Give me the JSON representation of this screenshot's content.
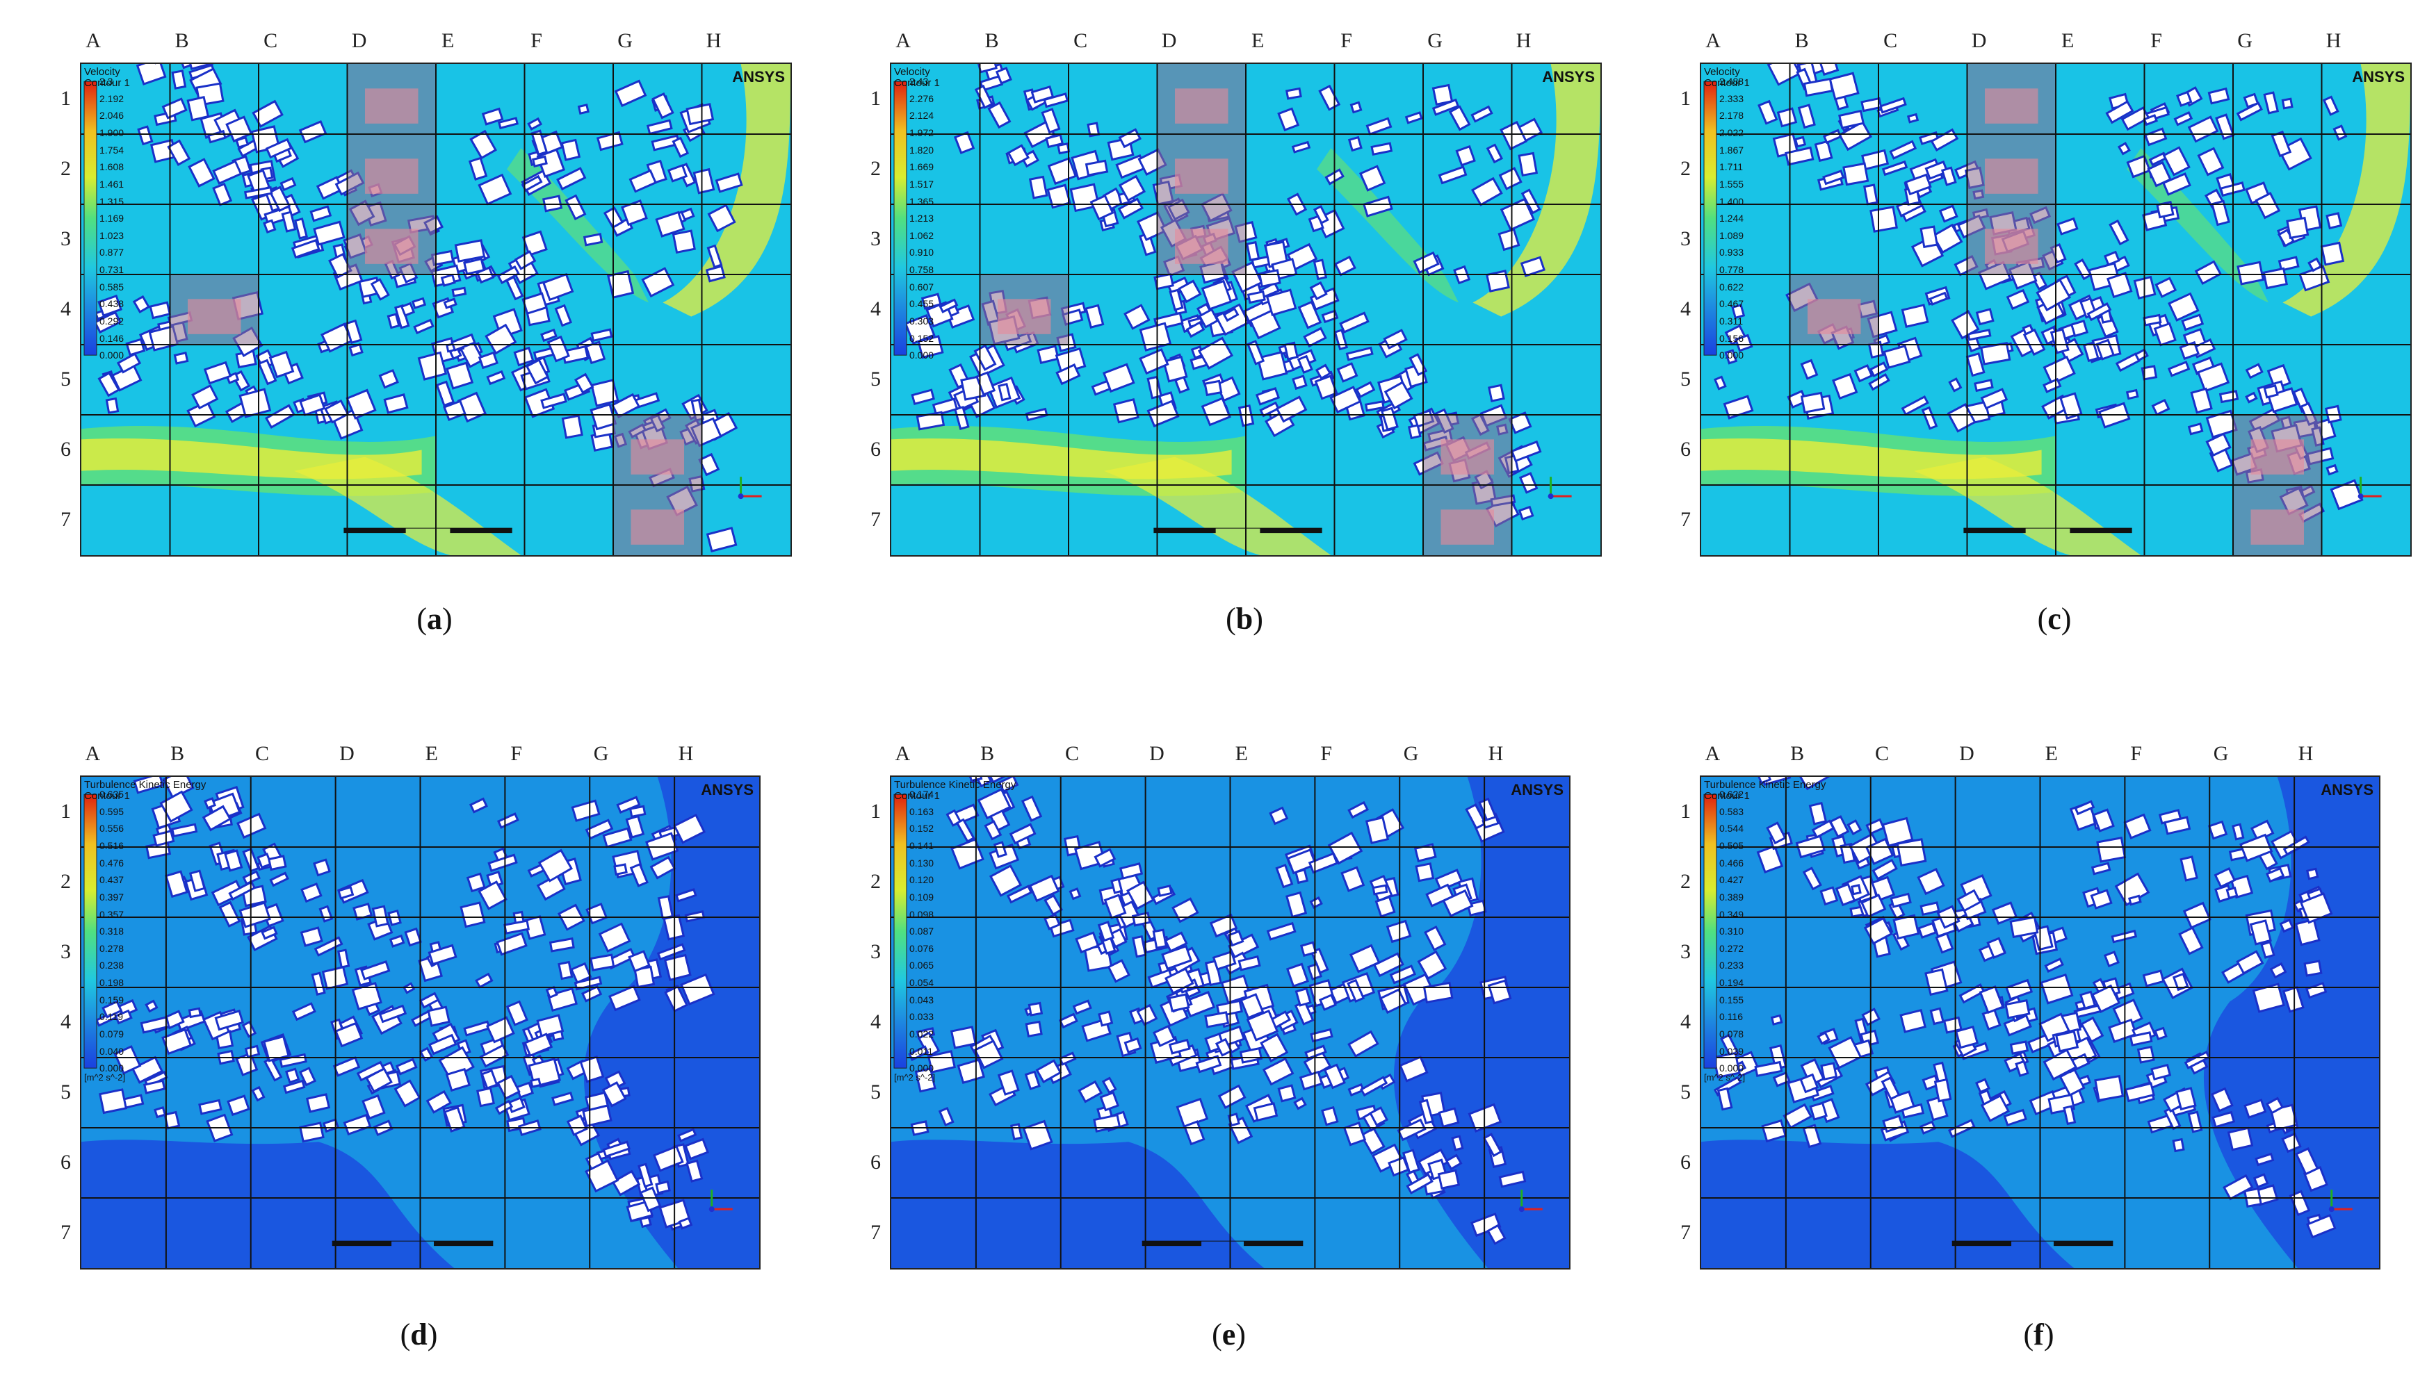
{
  "grid": {
    "columns": [
      "A",
      "B",
      "C",
      "D",
      "E",
      "F",
      "G",
      "H"
    ],
    "rows": [
      "1",
      "2",
      "3",
      "4",
      "5",
      "6",
      "7"
    ]
  },
  "brand": "ANSYS",
  "colors": {
    "blue_field": "#1a57e0",
    "cyan_field": "#19c3e6",
    "green_field": "#5fe07a",
    "yellow_field": "#e9ee3a",
    "building": "#ffffff",
    "building_edge": "#1a30c8",
    "highlight_pink": "#e88a9a",
    "highlight_gray": "#8a6f8f"
  },
  "panels": [
    {
      "caption": "a",
      "quantity": "velocity",
      "legend_title": [
        "Velocity",
        "Contour 1"
      ],
      "legend_ticks": [
        "2.3",
        "2.192",
        "2.046",
        "1.900",
        "1.754",
        "1.608",
        "1.461",
        "1.315",
        "1.169",
        "1.023",
        "0.877",
        "0.731",
        "0.585",
        "0.438",
        "0.292",
        "0.146",
        "0.000"
      ],
      "highlight_cells": [
        "D1",
        "D2",
        "D3",
        "B4",
        "G6",
        "G7"
      ]
    },
    {
      "caption": "b",
      "quantity": "velocity",
      "legend_title": [
        "Velocity",
        "Contour 1"
      ],
      "legend_ticks": [
        "2.43",
        "2.276",
        "2.124",
        "1.972",
        "1.820",
        "1.669",
        "1.517",
        "1.365",
        "1.213",
        "1.062",
        "0.910",
        "0.758",
        "0.607",
        "0.455",
        "0.303",
        "0.152",
        "0.000"
      ],
      "highlight_cells": [
        "D1",
        "D2",
        "D3",
        "B4",
        "G6",
        "G7"
      ]
    },
    {
      "caption": "c",
      "quantity": "velocity",
      "legend_title": [
        "Velocity",
        "Contour 1"
      ],
      "legend_ticks": [
        "2.488",
        "2.333",
        "2.178",
        "2.022",
        "1.867",
        "1.711",
        "1.555",
        "1.400",
        "1.244",
        "1.089",
        "0.933",
        "0.778",
        "0.622",
        "0.467",
        "0.311",
        "0.156",
        "0.000"
      ],
      "highlight_cells": [
        "D1",
        "D2",
        "D3",
        "B4",
        "G6",
        "G7"
      ]
    },
    {
      "caption": "d",
      "quantity": "tke",
      "legend_title": [
        "Turbulence Kinetic Energy",
        "Contour 1"
      ],
      "legend_ticks": [
        "0.635",
        "0.595",
        "0.556",
        "0.516",
        "0.476",
        "0.437",
        "0.397",
        "0.357",
        "0.318",
        "0.278",
        "0.238",
        "0.198",
        "0.159",
        "0.119",
        "0.079",
        "0.040",
        "0.000"
      ],
      "unit": "[m^2 s^-2]",
      "highlight_cells": []
    },
    {
      "caption": "e",
      "quantity": "tke",
      "legend_title": [
        "Turbulence Kinetic Energy",
        "Contour 1"
      ],
      "legend_ticks": [
        "0.174",
        "0.163",
        "0.152",
        "0.141",
        "0.130",
        "0.120",
        "0.109",
        "0.098",
        "0.087",
        "0.076",
        "0.065",
        "0.054",
        "0.043",
        "0.033",
        "0.022",
        "0.011",
        "0.000"
      ],
      "unit": "[m^2 s^-2]",
      "highlight_cells": []
    },
    {
      "caption": "f",
      "quantity": "tke",
      "legend_title": [
        "Turbulence Kinetic Energy",
        "Contour 1"
      ],
      "legend_ticks": [
        "0.622",
        "0.583",
        "0.544",
        "0.505",
        "0.466",
        "0.427",
        "0.389",
        "0.349",
        "0.310",
        "0.272",
        "0.233",
        "0.194",
        "0.155",
        "0.116",
        "0.078",
        "0.039",
        "0.000"
      ],
      "unit": "[m^2 s^-2]",
      "highlight_cells": []
    }
  ]
}
